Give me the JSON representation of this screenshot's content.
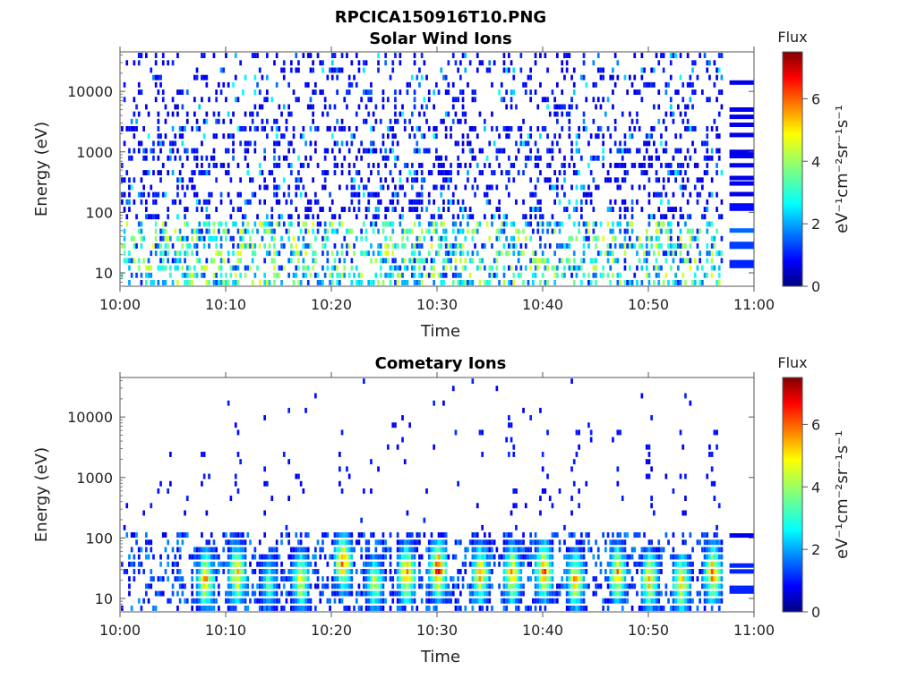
{
  "figure_title": "RPCICA150916T10.PNG",
  "colorbar": {
    "title": "Flux",
    "unit": "eV⁻¹cm⁻²sr⁻¹s⁻¹",
    "ticks": [
      0,
      2,
      4,
      6
    ],
    "range": [
      0,
      7.5
    ],
    "colormap": "jet"
  },
  "chart_data": [
    {
      "type": "heatmap",
      "title": "Solar Wind Ions",
      "xlabel": "Time",
      "ylabel": "Energy (eV)",
      "x_ticks": [
        "10:00",
        "10:10",
        "10:20",
        "10:30",
        "10:40",
        "10:50",
        "11:00"
      ],
      "xlim": [
        "10:00",
        "11:00"
      ],
      "y_ticks": [
        10,
        100,
        1000,
        10000
      ],
      "ylim": [
        6,
        45000
      ],
      "yscale": "log",
      "data_end": "10:57",
      "description_values": {
        "low_energy_band_max_flux": 4.5,
        "high_energy_background_flux": 1
      }
    },
    {
      "type": "heatmap",
      "title": "Cometary Ions",
      "xlabel": "Time",
      "ylabel": "Energy (eV)",
      "x_ticks": [
        "10:00",
        "10:10",
        "10:20",
        "10:30",
        "10:40",
        "10:50",
        "11:00"
      ],
      "xlim": [
        "10:00",
        "11:00"
      ],
      "y_ticks": [
        10,
        100,
        1000,
        10000
      ],
      "ylim": [
        6,
        45000
      ],
      "yscale": "log",
      "data_end": "10:57",
      "bursts": [
        {
          "time": "10:08",
          "energy": 20,
          "flux": 6
        },
        {
          "time": "10:11",
          "energy": 25,
          "flux": 6
        },
        {
          "time": "10:14",
          "energy": 18,
          "flux": 4
        },
        {
          "time": "10:17",
          "energy": 20,
          "flux": 5.5
        },
        {
          "time": "10:21",
          "energy": 40,
          "flux": 6.5
        },
        {
          "time": "10:24",
          "energy": 18,
          "flux": 5
        },
        {
          "time": "10:27",
          "energy": 25,
          "flux": 6.5
        },
        {
          "time": "10:30",
          "energy": 30,
          "flux": 7
        },
        {
          "time": "10:34",
          "energy": 25,
          "flux": 6
        },
        {
          "time": "10:37",
          "energy": 25,
          "flux": 6
        },
        {
          "time": "10:40",
          "energy": 28,
          "flux": 6.5
        },
        {
          "time": "10:43",
          "energy": 20,
          "flux": 6
        },
        {
          "time": "10:47",
          "energy": 25,
          "flux": 6
        },
        {
          "time": "10:50",
          "energy": 20,
          "flux": 6
        },
        {
          "time": "10:53",
          "energy": 18,
          "flux": 6
        },
        {
          "time": "10:56",
          "energy": 25,
          "flux": 6.5
        }
      ]
    }
  ]
}
